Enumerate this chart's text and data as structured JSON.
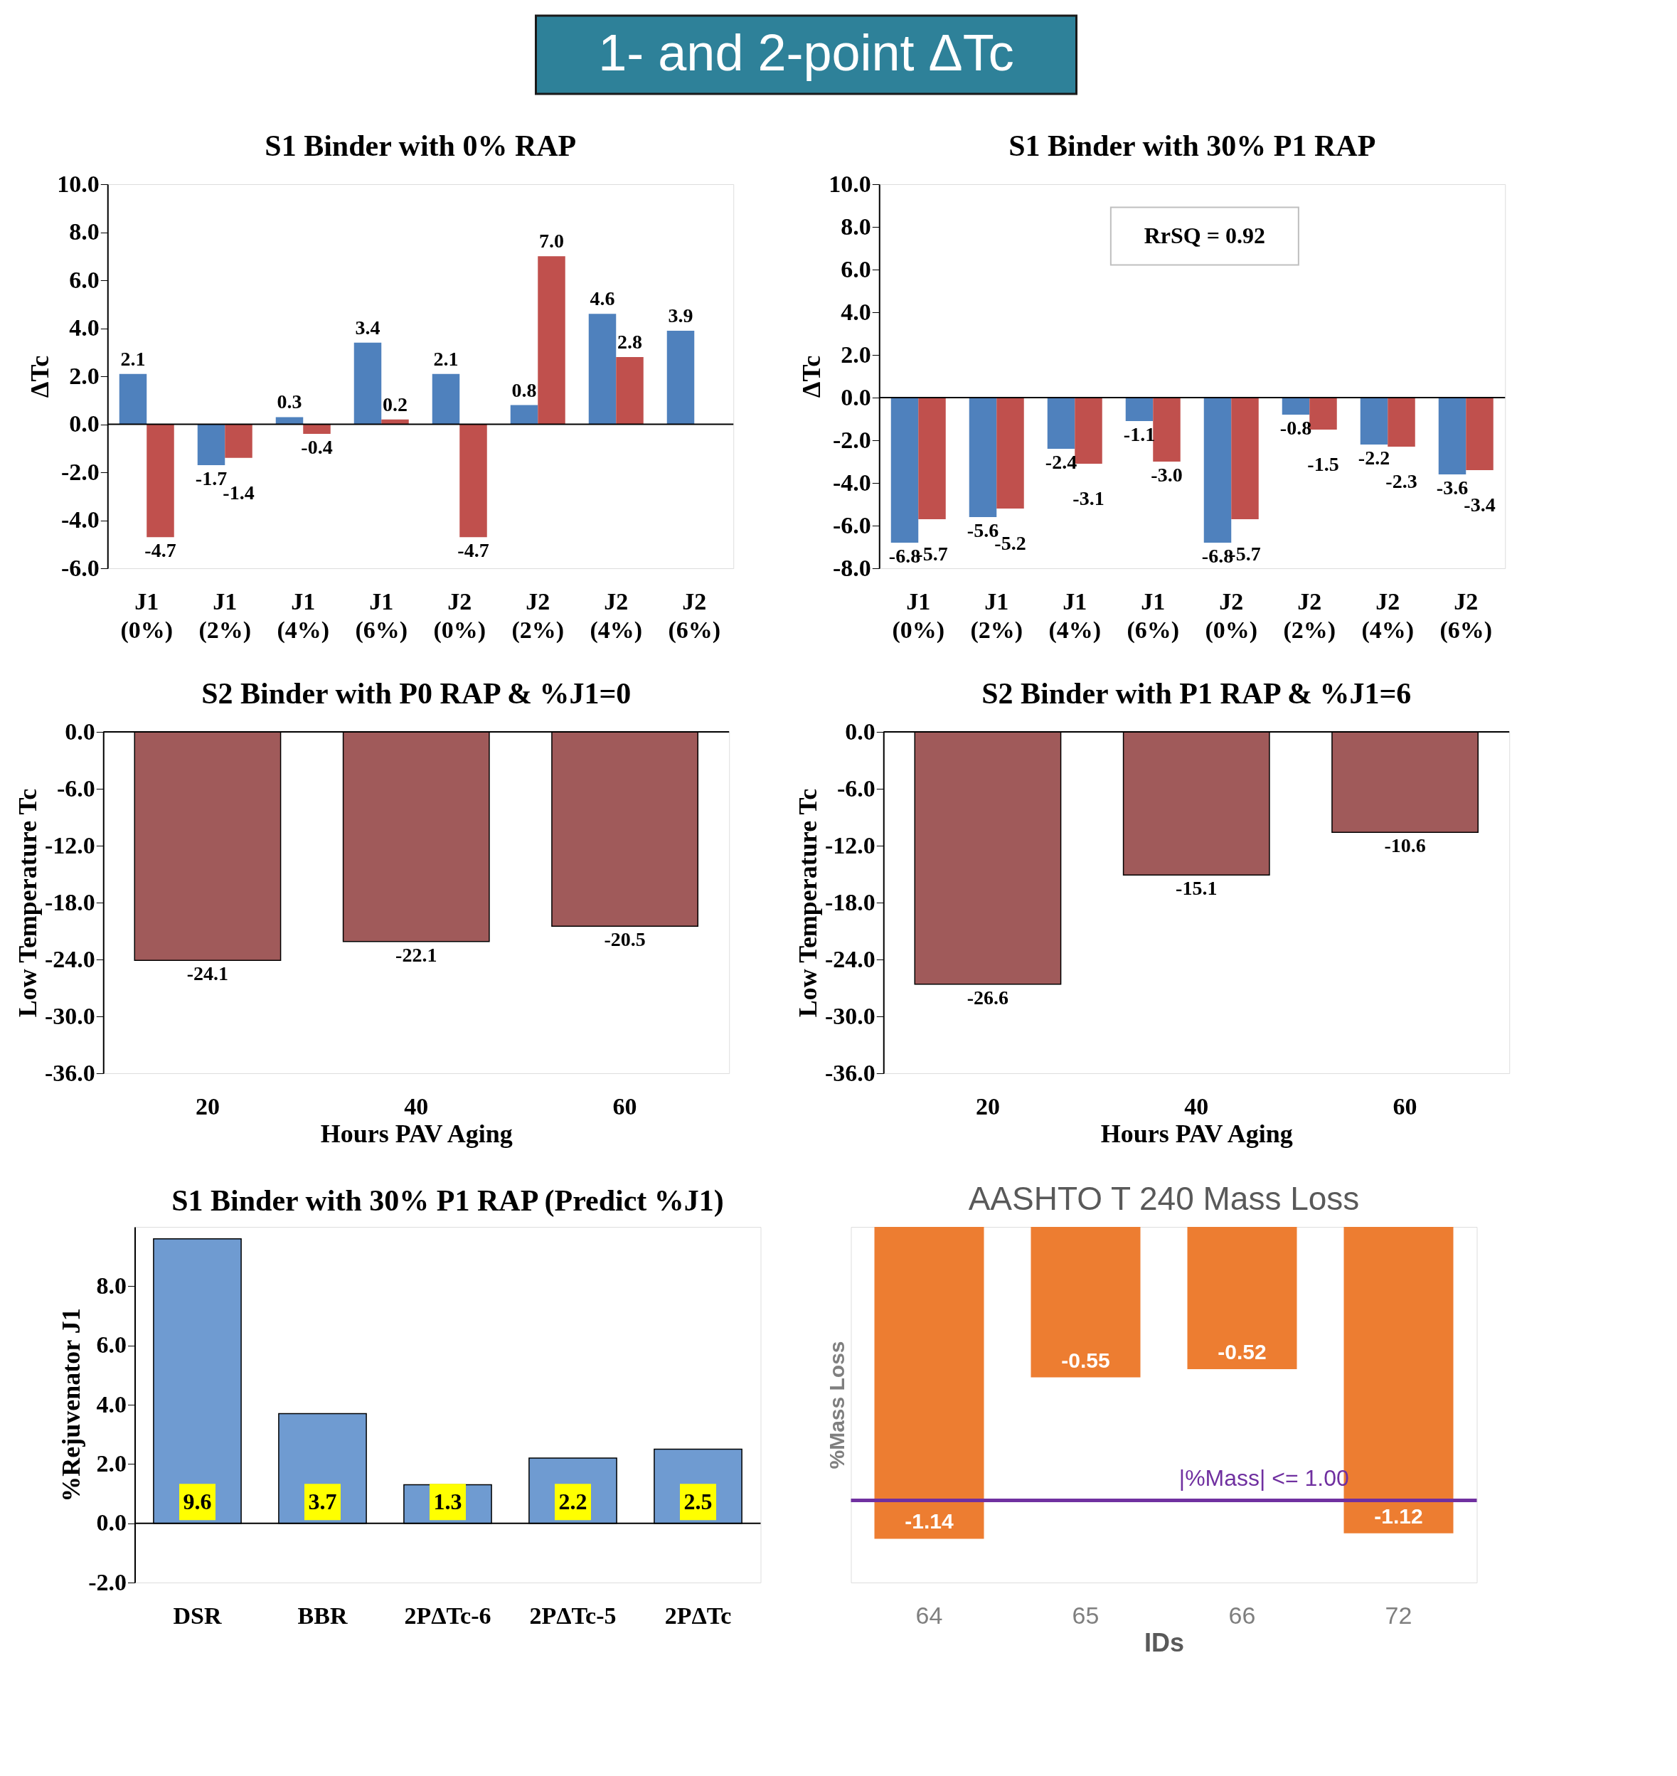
{
  "chart_data": [
    {
      "type": "other",
      "title": "1- and 2-point ΔTc"
    },
    {
      "type": "bar",
      "title": "S1 Binder with 0% RAP",
      "ylabel": "ΔTc",
      "categories": [
        "J1 (0%)",
        "J1 (2%)",
        "J1 (4%)",
        "J1 (6%)",
        "J2 (0%)",
        "J2 (2%)",
        "J2 (4%)",
        "J2 (6%)"
      ],
      "series": [
        {
          "color": "#4f81bd",
          "values": [
            2.1,
            -1.7,
            0.3,
            3.4,
            2.1,
            0.8,
            4.6,
            3.9
          ],
          "value_labels": [
            "2.1",
            "-1.7",
            "0.3",
            "3.4",
            "2.1",
            "0.8",
            "4.6",
            "3.9"
          ]
        },
        {
          "color": "#c0504d",
          "values": [
            -4.7,
            -1.4,
            -0.4,
            0.2,
            -4.7,
            7.0,
            2.8,
            null
          ],
          "value_labels": [
            "-4.7",
            "-1.4",
            "-0.4",
            "0.2",
            "-4.7",
            "7.0",
            "2.8",
            null
          ]
        }
      ],
      "ylim": [
        -6.0,
        10.0
      ],
      "yticks": [
        {
          "value": -6,
          "label": "-6.0"
        },
        {
          "value": -4,
          "label": "-4.0"
        },
        {
          "value": -2,
          "label": "-2.0"
        },
        {
          "value": 0,
          "label": "0.0"
        },
        {
          "value": 2,
          "label": "2.0"
        },
        {
          "value": 4,
          "label": "4.0"
        },
        {
          "value": 6,
          "label": "6.0"
        },
        {
          "value": 8,
          "label": "8.0"
        },
        {
          "value": 10,
          "label": "10.0"
        }
      ]
    },
    {
      "type": "bar",
      "title": "S1 Binder with 30% P1 RAP",
      "ylabel": "ΔTc",
      "categories": [
        "J1 (0%)",
        "J1 (2%)",
        "J1 (4%)",
        "J1 (6%)",
        "J2 (0%)",
        "J2 (2%)",
        "J2 (4%)",
        "J2 (6%)"
      ],
      "series": [
        {
          "color": "#4f81bd",
          "values": [
            -6.8,
            -5.6,
            -2.4,
            -1.1,
            -6.8,
            -0.8,
            -2.2,
            -3.6
          ],
          "value_labels": [
            "-6.8",
            "-5.6",
            "-2.4",
            "-1.1",
            "-6.8",
            "-0.8",
            "-2.2",
            "-3.6"
          ]
        },
        {
          "color": "#c0504d",
          "values": [
            -5.7,
            -5.2,
            -3.1,
            -3.0,
            -5.7,
            -1.5,
            -2.3,
            -3.4
          ],
          "value_labels": [
            "-5.7",
            "-5.2",
            "-3.1",
            "-3.0",
            "-5.7",
            "-1.5",
            "-2.3",
            "-3.4"
          ]
        }
      ],
      "ylim": [
        -8.0,
        10.0
      ],
      "yticks": [
        {
          "value": -8,
          "label": "-8.0"
        },
        {
          "value": -6,
          "label": "-6.0"
        },
        {
          "value": -4,
          "label": "-4.0"
        },
        {
          "value": -2,
          "label": "-2.0"
        },
        {
          "value": 0,
          "label": "0.0"
        },
        {
          "value": 2,
          "label": "2.0"
        },
        {
          "value": 4,
          "label": "4.0"
        },
        {
          "value": 6,
          "label": "6.0"
        },
        {
          "value": 8,
          "label": "8.0"
        },
        {
          "value": 10,
          "label": "10.0"
        }
      ],
      "annotations": [
        "RrSQ = 0.92"
      ]
    },
    {
      "type": "bar",
      "title": "S2 Binder with P0 RAP & %J1=0",
      "xlabel": "Hours PAV Aging",
      "ylabel": "Low Temperature Tc",
      "categories": [
        "20",
        "40",
        "60"
      ],
      "values": [
        -24.1,
        -22.1,
        -20.5
      ],
      "value_labels": [
        "-24.1",
        "-22.1",
        "-20.5"
      ],
      "color": "#a05a5a",
      "ylim": [
        -36.0,
        0.0
      ],
      "yticks": [
        {
          "value": -36,
          "label": "-36.0"
        },
        {
          "value": -30,
          "label": "-30.0"
        },
        {
          "value": -24,
          "label": "-24.0"
        },
        {
          "value": -18,
          "label": "-18.0"
        },
        {
          "value": -12,
          "label": "-12.0"
        },
        {
          "value": -6,
          "label": "-6.0"
        },
        {
          "value": 0,
          "label": "0.0"
        }
      ]
    },
    {
      "type": "bar",
      "title": "S2 Binder with P1 RAP & %J1=6",
      "xlabel": "Hours PAV Aging",
      "ylabel": "Low Temperature Tc",
      "categories": [
        "20",
        "40",
        "60"
      ],
      "values": [
        -26.6,
        -15.1,
        -10.6
      ],
      "value_labels": [
        "-26.6",
        "-15.1",
        "-10.6"
      ],
      "color": "#a05a5a",
      "ylim": [
        -36.0,
        0.0
      ],
      "yticks": [
        {
          "value": -36,
          "label": "-36.0"
        },
        {
          "value": -30,
          "label": "-30.0"
        },
        {
          "value": -24,
          "label": "-24.0"
        },
        {
          "value": -18,
          "label": "-18.0"
        },
        {
          "value": -12,
          "label": "-12.0"
        },
        {
          "value": -6,
          "label": "-6.0"
        },
        {
          "value": 0,
          "label": "0.0"
        }
      ]
    },
    {
      "type": "bar",
      "title": "S1 Binder with 30% P1 RAP (Predict %J1)",
      "ylabel": "%Rejuvenator J1",
      "categories": [
        "DSR",
        "BBR",
        "2PΔTc-6",
        "2PΔTc-5",
        "2PΔTc"
      ],
      "values": [
        9.6,
        3.7,
        1.3,
        2.2,
        2.5
      ],
      "value_labels": [
        "9.6",
        "3.7",
        "1.3",
        "2.2",
        "2.5"
      ],
      "color": "#6f9bd1",
      "ylim": [
        -2.0,
        10.0
      ],
      "yticks": [
        {
          "value": -2,
          "label": "-2.0"
        },
        {
          "value": 0,
          "label": "0.0"
        },
        {
          "value": 2,
          "label": "2.0"
        },
        {
          "value": 4,
          "label": "4.0"
        },
        {
          "value": 6,
          "label": "6.0"
        },
        {
          "value": 8,
          "label": "8.0"
        }
      ]
    },
    {
      "type": "bar",
      "title": "AASHTO T 240 Mass Loss",
      "xlabel": "IDs",
      "ylabel": "%Mass Loss",
      "categories": [
        "64",
        "65",
        "66",
        "72"
      ],
      "values": [
        -1.14,
        -0.55,
        -0.52,
        -1.12
      ],
      "value_labels": [
        "-1.14",
        "-0.55",
        "-0.52",
        "-1.12"
      ],
      "color": "#ed7d31",
      "ylim": [
        -1.3,
        0.0
      ],
      "tick_labels": "x",
      "ref_lines": [
        {
          "axis": "y",
          "value": -1.0,
          "color": "#7030a0"
        }
      ],
      "annotations": [
        "|%Mass| <= 1.00"
      ]
    }
  ]
}
